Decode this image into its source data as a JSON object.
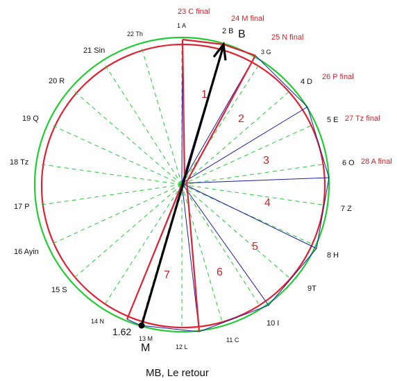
{
  "caption": "MB, Le retour",
  "colors": {
    "green": "#22cc33",
    "red": "#dd2233",
    "blue": "#1a1aaa",
    "black": "#000000"
  },
  "outer_labels": [
    "1 A",
    "2 B",
    "3 G",
    "4 D",
    "5 E",
    "6 O",
    "7 Z",
    "8 H",
    "9T",
    "10 I",
    "11 C",
    "12 L",
    "13 M",
    "14 N",
    "15 S",
    "16 Ayin",
    "17 P",
    "18 Tz",
    "19 Q",
    "20 R",
    "21 Sin",
    "22 Th"
  ],
  "final_labels": [
    "23 C final",
    "24 M final",
    "25 N final",
    "26 P final",
    "27 Tz final",
    "28 A final"
  ],
  "triangle_numbers": [
    "1",
    "2",
    "3",
    "4",
    "5",
    "6",
    "7"
  ],
  "big_labels": {
    "b": "B",
    "m": "M"
  },
  "ratio_label": "1.62"
}
